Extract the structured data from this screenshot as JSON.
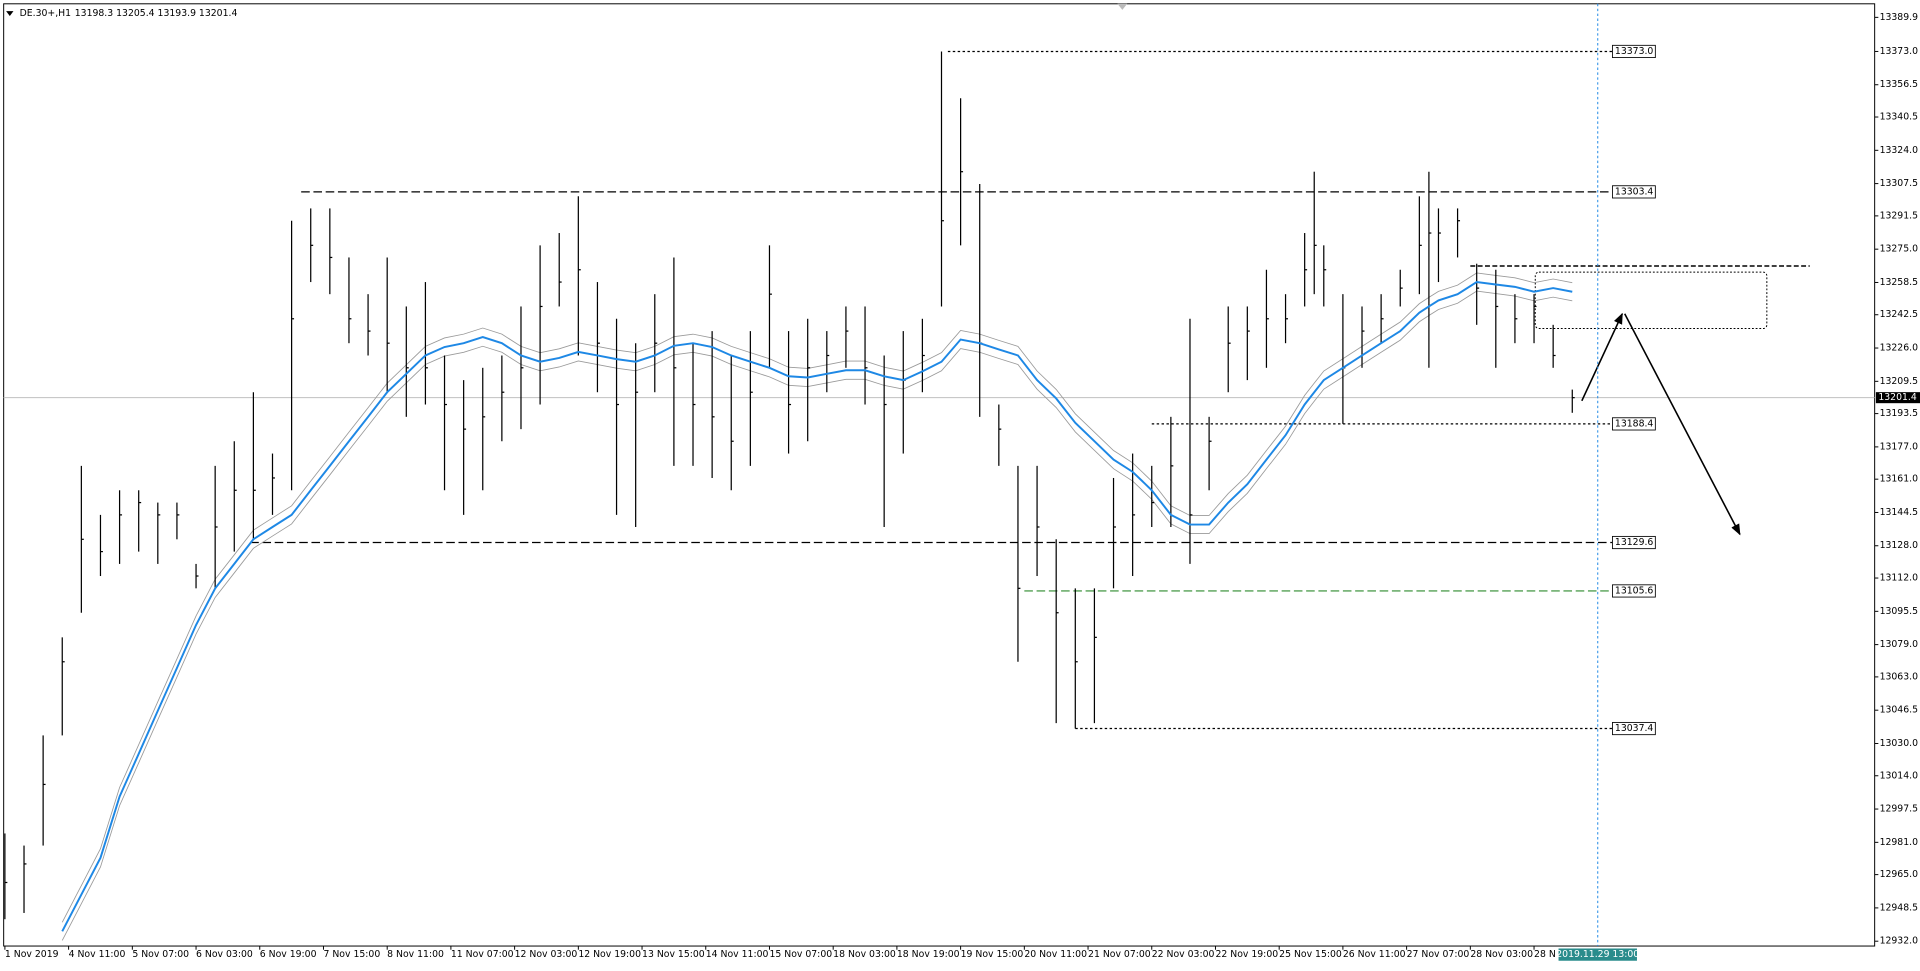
{
  "chart_data": {
    "type": "ohlc",
    "header": {
      "symbol": "DE.30+,H1",
      "quote": "13198.3 13205.4 13193.9 13201.4"
    },
    "x": [
      0,
      6,
      12,
      18,
      24,
      30,
      36,
      42,
      48,
      54,
      60,
      66,
      72,
      78,
      84,
      90,
      96,
      102,
      108,
      114,
      120,
      126,
      132,
      138,
      144,
      150,
      156,
      162,
      168,
      174,
      180,
      186,
      192,
      198,
      204,
      210,
      216,
      222,
      228,
      234,
      240,
      246,
      252,
      258,
      264,
      270,
      276,
      282,
      288,
      294,
      300,
      306,
      312,
      318,
      324,
      330,
      336,
      342,
      348,
      354,
      360,
      366,
      372,
      378,
      384,
      390,
      396,
      402,
      408,
      411,
      414,
      420,
      426,
      432,
      438,
      444,
      447,
      450,
      456,
      462,
      468,
      474,
      480,
      486,
      492
    ],
    "high": [
      12985.4,
      12979.4,
      13034.0,
      13082.6,
      13167.6,
      13143.3,
      13155.5,
      13155.5,
      13149.4,
      13149.4,
      13119.0,
      13167.6,
      13179.8,
      13204.1,
      13173.7,
      13289.1,
      13295.2,
      13295.2,
      13270.9,
      13252.7,
      13270.9,
      13246.6,
      13258.7,
      13222.3,
      13210.1,
      13216.2,
      13222.3,
      13246.6,
      13276.9,
      13283.0,
      13301.2,
      13258.7,
      13240.5,
      13228.4,
      13252.7,
      13270.9,
      13228.4,
      13234.4,
      13222.3,
      13234.4,
      13276.9,
      13234.4,
      13240.5,
      13234.4,
      13246.6,
      13246.6,
      13222.3,
      13234.4,
      13240.5,
      13373.0,
      13349.8,
      13307.3,
      13198.0,
      13167.6,
      13167.6,
      13131.2,
      13106.9,
      13106.9,
      13161.6,
      13173.7,
      13167.6,
      13191.9,
      13240.5,
      13191.9,
      13246.6,
      13246.6,
      13264.8,
      13252.7,
      13283.0,
      13313.4,
      13276.9,
      13252.7,
      13246.6,
      13252.7,
      13264.8,
      13301.2,
      13313.4,
      13295.2,
      13295.2,
      13267.8,
      13264.8,
      13252.7,
      13252.7,
      13237.5,
      13205.4
    ],
    "low": [
      12942.9,
      12946.0,
      12979.4,
      13034.0,
      13094.8,
      13113.0,
      13119.0,
      13125.1,
      13119.0,
      13131.2,
      13106.9,
      13106.9,
      13125.1,
      13131.2,
      13143.3,
      13155.5,
      13258.7,
      13252.7,
      13228.4,
      13222.3,
      13204.1,
      13191.9,
      13198.0,
      13155.5,
      13143.3,
      13155.5,
      13179.8,
      13185.8,
      13198.0,
      13246.6,
      13222.3,
      13204.1,
      13143.3,
      13137.3,
      13204.1,
      13167.6,
      13167.6,
      13161.6,
      13155.5,
      13167.6,
      13216.2,
      13173.7,
      13179.8,
      13204.1,
      13216.2,
      13198.0,
      13137.3,
      13173.7,
      13204.1,
      13246.6,
      13276.9,
      13191.9,
      13167.6,
      13070.5,
      13113.0,
      13040.1,
      13037.4,
      13040.1,
      13106.9,
      13113.0,
      13137.3,
      13137.3,
      13119.0,
      13155.5,
      13204.1,
      13210.1,
      13216.2,
      13228.4,
      13246.6,
      13252.7,
      13246.6,
      13188.4,
      13216.2,
      13228.4,
      13246.6,
      13252.7,
      13216.2,
      13258.7,
      13270.9,
      13237.5,
      13216.2,
      13228.4,
      13228.4,
      13216.2,
      13193.9
    ],
    "close": [
      12961.1,
      12970.3,
      13009.7,
      13070.5,
      13131.2,
      13125.1,
      13143.3,
      13149.4,
      13143.3,
      13143.3,
      13113.0,
      13137.3,
      13155.5,
      13155.5,
      13161.6,
      13240.5,
      13276.9,
      13270.9,
      13240.5,
      13234.4,
      13228.4,
      13216.2,
      13216.2,
      13198.0,
      13185.8,
      13191.9,
      13204.1,
      13216.2,
      13246.6,
      13258.7,
      13264.8,
      13228.4,
      13198.0,
      13204.1,
      13228.4,
      13216.2,
      13198.0,
      13191.9,
      13179.8,
      13204.1,
      13252.7,
      13198.0,
      13216.2,
      13222.3,
      13234.4,
      13216.2,
      13198.0,
      13210.1,
      13222.3,
      13289.1,
      13313.4,
      13228.4,
      13185.8,
      13106.9,
      13137.3,
      13094.8,
      13070.5,
      13082.6,
      13137.3,
      13143.3,
      13149.4,
      13167.6,
      13143.3,
      13179.8,
      13228.4,
      13234.4,
      13240.5,
      13240.5,
      13264.8,
      13276.9,
      13264.8,
      13216.2,
      13234.4,
      13240.5,
      13255.7,
      13276.9,
      13283.0,
      13283.0,
      13289.1,
      13255.7,
      13246.6,
      13240.5,
      13246.6,
      13222.3,
      13201.4
    ],
    "ma": {
      "color": "#1e88e5",
      "envelope": 4.5,
      "values": [
        null,
        null,
        null,
        12936.9,
        12955.1,
        12973.3,
        13003.7,
        13024.9,
        13046.2,
        13067.4,
        13088.7,
        13106.9,
        13119.0,
        13131.2,
        13137.3,
        13143.3,
        13155.5,
        13167.6,
        13179.8,
        13191.9,
        13204.1,
        13213.2,
        13222.3,
        13226.5,
        13228.4,
        13231.4,
        13228.4,
        13222.3,
        13219.2,
        13221.1,
        13224.1,
        13222.3,
        13220.5,
        13219.2,
        13222.3,
        13227.1,
        13228.4,
        13226.5,
        13222.3,
        13219.2,
        13216.2,
        13212.0,
        13211.4,
        13213.2,
        13215.0,
        13215.0,
        13212.0,
        13210.1,
        13214.4,
        13219.2,
        13230.2,
        13228.4,
        13225.3,
        13222.3,
        13210.1,
        13201.0,
        13188.9,
        13179.8,
        13170.7,
        13164.6,
        13155.5,
        13143.3,
        13138.5,
        13138.5,
        13149.4,
        13158.5,
        13170.7,
        13182.8,
        13198.0,
        13204.1,
        13210.1,
        13216.2,
        13222.3,
        13228.4,
        13234.4,
        13243.5,
        13246.6,
        13249.6,
        13252.7,
        13258.7,
        13257.5,
        13256.3,
        13253.9,
        13255.7,
        13253.9
      ]
    },
    "bar_color": "#000000",
    "ylim": [
      12929.6,
      13395.4
    ],
    "yticks": [
      13389.9,
      {
        "value": 13373,
        "label": "13373.0"
      },
      13356.5,
      13340.5,
      {
        "value": 13324,
        "label": "13324.0"
      },
      13307.5,
      13291.5,
      {
        "value": 13275,
        "label": "13275.0"
      },
      13258.5,
      13242.5,
      {
        "value": 13226,
        "label": "13226.0"
      },
      13209.5,
      13193.5,
      {
        "value": 13177,
        "label": "13177.0"
      },
      {
        "value": 13161,
        "label": "13161.0"
      },
      13144.5,
      {
        "value": 13128,
        "label": "13128.0"
      },
      {
        "value": 13112,
        "label": "13112.0"
      },
      13095.5,
      {
        "value": 13079,
        "label": "13079.0"
      },
      {
        "value": 13063,
        "label": "13063.0"
      },
      13046.5,
      {
        "value": 13030,
        "label": "13030.0"
      },
      {
        "value": 13014,
        "label": "13014.0"
      },
      12997.5,
      {
        "value": 12981,
        "label": "12981.0"
      },
      {
        "value": 12965,
        "label": "12965.0"
      },
      12948.5,
      {
        "value": 12932,
        "label": "12932.0"
      }
    ],
    "xlim": [
      -1,
      588
    ],
    "xticks": [
      {
        "value": 0,
        "label": "1 Nov 2019"
      },
      {
        "value": 20,
        "label": "4 Nov 11:00"
      },
      {
        "value": 40,
        "label": "5 Nov 07:00"
      },
      {
        "value": 60,
        "label": "6 Nov 03:00"
      },
      {
        "value": 80,
        "label": "6 Nov 19:00"
      },
      {
        "value": 100,
        "label": "7 Nov 15:00"
      },
      {
        "value": 120,
        "label": "8 Nov 11:00"
      },
      {
        "value": 140,
        "label": "11 Nov 07:00"
      },
      {
        "value": 160,
        "label": "12 Nov 03:00"
      },
      {
        "value": 180,
        "label": "12 Nov 19:00"
      },
      {
        "value": 200,
        "label": "13 Nov 15:00"
      },
      {
        "value": 220,
        "label": "14 Nov 11:00"
      },
      {
        "value": 240,
        "label": "15 Nov 07:00"
      },
      {
        "value": 260,
        "label": "18 Nov 03:00"
      },
      {
        "value": 280,
        "label": "18 Nov 19:00"
      },
      {
        "value": 300,
        "label": "19 Nov 15:00"
      },
      {
        "value": 320,
        "label": "20 Nov 11:00"
      },
      {
        "value": 340,
        "label": "21 Nov 07:00"
      },
      {
        "value": 360,
        "label": "22 Nov 03:00"
      },
      {
        "value": 380,
        "label": "22 Nov 19:00"
      },
      {
        "value": 400,
        "label": "25 Nov 15:00"
      },
      {
        "value": 420,
        "label": "26 Nov 11:00"
      },
      {
        "value": 440,
        "label": "27 Nov 07:00"
      },
      {
        "value": 460,
        "label": "28 Nov 03:00"
      },
      {
        "value": 480,
        "label": "28 N"
      }
    ],
    "levels": [
      {
        "value": 13373.0,
        "label": "13373.0",
        "from": 296,
        "style": "dotted",
        "color": "#000000"
      },
      {
        "value": 13303.4,
        "label": "13303.4",
        "from": 93,
        "style": "dashed",
        "color": "#000000"
      },
      {
        "value": 13188.4,
        "label": "13188.4",
        "from": 360,
        "style": "dotted",
        "color": "#000000"
      },
      {
        "value": 13129.6,
        "label": "13129.6",
        "from": 77,
        "style": "dashed",
        "color": "#000000"
      },
      {
        "value": 13105.6,
        "label": "13105.6",
        "from": 320,
        "style": "dashed",
        "color": "#2e8b2e"
      },
      {
        "value": 13037.4,
        "label": "13037.4",
        "from": 336,
        "style": "dotted",
        "color": "#000000"
      }
    ],
    "current_price": 13201.4,
    "time_marker": {
      "x": 500,
      "label": "2019.11.29 13:00"
    }
  }
}
